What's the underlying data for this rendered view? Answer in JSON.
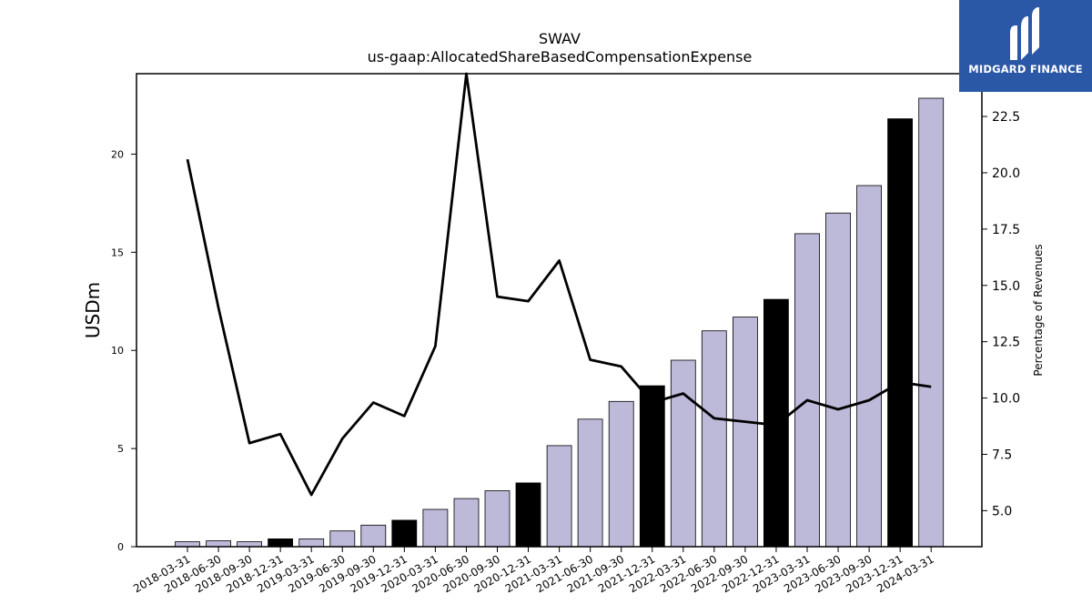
{
  "brand": {
    "name": "MIDGARD FINANCE",
    "bg_color": "#2b58a6"
  },
  "chart_data": {
    "type": "bar",
    "title": "SWAV",
    "subtitle": "us-gaap:AllocatedShareBasedCompensationExpense",
    "ylabel": "USDm",
    "y2label": "Percentage of Revenues",
    "ylim": [
      0,
      24.1
    ],
    "y2lim": [
      3.4,
      24.4
    ],
    "yticks": [
      0,
      5,
      10,
      15,
      20
    ],
    "y2ticks": [
      5.0,
      7.5,
      10.0,
      12.5,
      15.0,
      17.5,
      20.0,
      22.5
    ],
    "categories": [
      "2018-03-31",
      "2018-06-30",
      "2018-09-30",
      "2018-12-31",
      "2019-03-31",
      "2019-06-30",
      "2019-09-30",
      "2019-12-31",
      "2020-03-31",
      "2020-06-30",
      "2020-09-30",
      "2020-12-31",
      "2021-03-31",
      "2021-06-30",
      "2021-09-30",
      "2021-12-31",
      "2022-03-31",
      "2022-06-30",
      "2022-09-30",
      "2022-12-31",
      "2023-03-31",
      "2023-06-30",
      "2023-09-30",
      "2023-12-31",
      "2024-03-31"
    ],
    "series": [
      {
        "values": [
          0.25,
          0.3,
          0.25,
          0.4,
          0.4,
          0.8,
          1.1,
          1.35,
          1.9,
          2.45,
          2.85,
          3.25,
          5.15,
          6.5,
          7.4,
          8.2,
          9.5,
          11.0,
          11.7,
          12.6,
          15.95,
          17.0,
          18.4,
          21.8,
          22.85
        ],
        "bar_color": "#bcb9d9",
        "highlight_color": "#000000",
        "highlight_categories": [
          "2018-12-31",
          "2019-12-31",
          "2020-12-31",
          "2021-12-31",
          "2022-12-31",
          "2023-12-31"
        ]
      },
      {
        "type": "line",
        "axis": "right",
        "values": [
          20.6,
          14.0,
          8.0,
          8.4,
          5.7,
          8.2,
          9.8,
          9.2,
          12.3,
          24.4,
          14.5,
          14.3,
          16.1,
          11.7,
          11.4,
          9.8,
          10.2,
          9.1,
          8.95,
          8.8,
          9.9,
          9.5,
          9.9,
          10.7,
          10.5
        ],
        "color": "#000000"
      }
    ],
    "grid": false,
    "legend": "none"
  }
}
